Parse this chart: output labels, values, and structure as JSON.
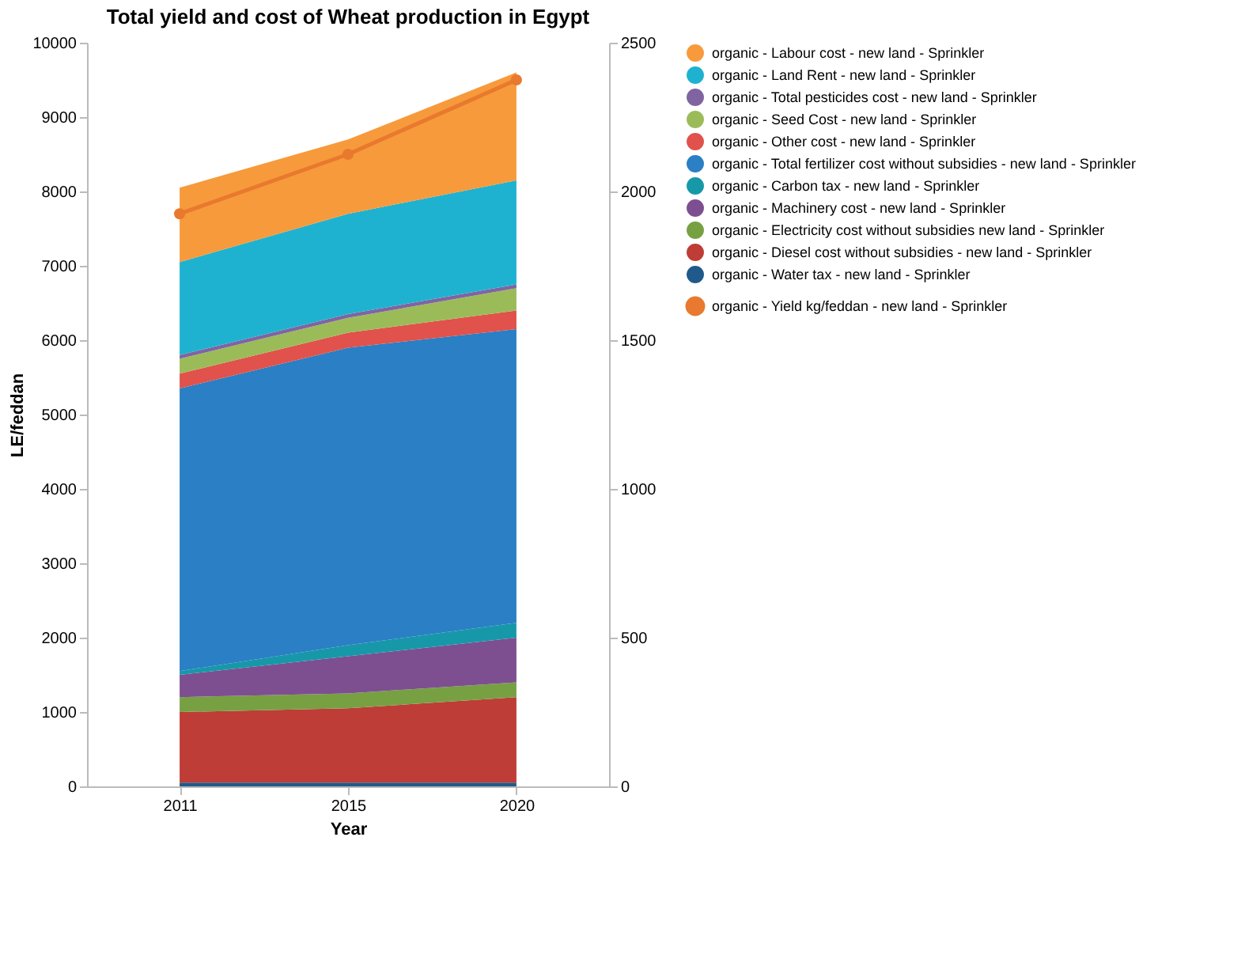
{
  "chart_data": {
    "type": "area",
    "title": "Total yield and cost of Wheat production in Egypt",
    "xlabel": "Year",
    "ylabel": "LE/feddan",
    "categories": [
      "2011",
      "2015",
      "2020"
    ],
    "stacked": true,
    "series": [
      {
        "name": "organic -  Water tax - new land - Sprinkler",
        "color": "#1f5a8a",
        "values": [
          50,
          50,
          50
        ]
      },
      {
        "name": "organic -  Diesel cost without subsidies - new land - Sprinkler",
        "color": "#be3d36",
        "values": [
          950,
          1000,
          1150
        ]
      },
      {
        "name": "organic -  Electricity cost without subsidies new land - Sprinkler",
        "color": "#77a043",
        "values": [
          200,
          200,
          200
        ]
      },
      {
        "name": "organic -  Machinery cost  - new land - Sprinkler",
        "color": "#7d4f90",
        "values": [
          300,
          500,
          600
        ]
      },
      {
        "name": "organic -  Carbon tax - new land - Sprinkler",
        "color": "#1798a8",
        "values": [
          50,
          150,
          200
        ]
      },
      {
        "name": "organic -  Total fertilizer cost without subsidies - new land - Sprinkler",
        "color": "#2a7fc5",
        "values": [
          3800,
          4000,
          3950
        ]
      },
      {
        "name": "organic -  Other cost - new land - Sprinkler",
        "color": "#e0524b",
        "values": [
          200,
          200,
          250
        ]
      },
      {
        "name": "organic -  Seed Cost - new land - Sprinkler",
        "color": "#9bbb59",
        "values": [
          200,
          200,
          300
        ]
      },
      {
        "name": "organic -  Total pesticides cost - new land - Sprinkler",
        "color": "#8064a2",
        "values": [
          50,
          50,
          50
        ]
      },
      {
        "name": "organic -  Land Rent  - new land - Sprinkler",
        "color": "#1fb2d0",
        "values": [
          1250,
          1350,
          1400
        ]
      },
      {
        "name": "organic -  Labour cost - new land - Sprinkler",
        "color": "#f79a3b",
        "values": [
          1000,
          1000,
          1450
        ]
      },
      {
        "name": "organic -  Yield kg/feddan - new land - Sprinkler",
        "color": "#e8792e",
        "type": "line",
        "axis": "y2",
        "marker": "circle",
        "values": [
          1925,
          2125,
          2375
        ]
      }
    ],
    "ylim": [
      0,
      10000
    ],
    "yticks": [
      0,
      1000,
      2000,
      3000,
      4000,
      5000,
      6000,
      7000,
      8000,
      9000,
      10000
    ],
    "y2lim": [
      0,
      2500
    ],
    "y2ticks": [
      0,
      500,
      1000,
      1500,
      2000,
      2500
    ],
    "grid": false,
    "legend": "right"
  }
}
